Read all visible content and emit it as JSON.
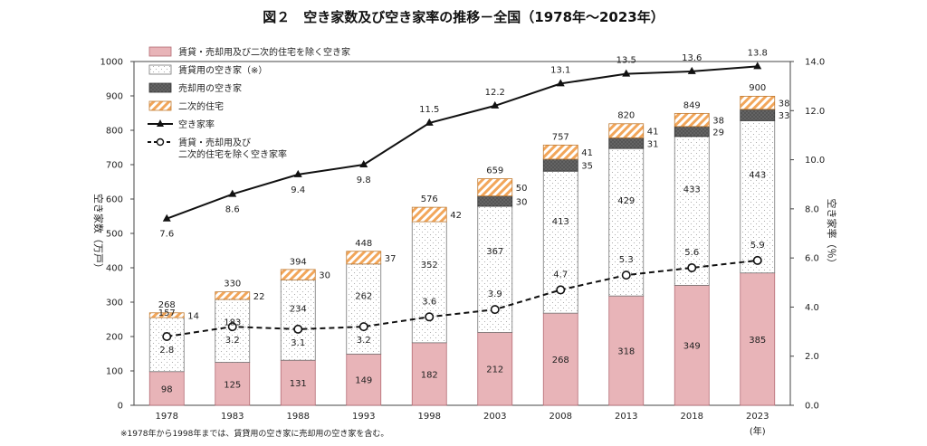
{
  "chart_data": {
    "type": "bar",
    "title": "図２　空き家数及び空き家率の推移－全国（1978年～2023年）",
    "categories": [
      "1978",
      "1983",
      "1988",
      "1993",
      "1998",
      "2003",
      "2008",
      "2013",
      "2018",
      "2023"
    ],
    "x_unit": "(年)",
    "y_left": {
      "label": "空き家数（万戸）",
      "ylim": [
        0,
        1000
      ],
      "ticks": [
        0,
        100,
        200,
        300,
        400,
        500,
        600,
        700,
        800,
        900,
        1000
      ]
    },
    "y_right": {
      "label": "空き家率（％）",
      "ylim": [
        0,
        14
      ],
      "ticks": [
        "0.0",
        "2.0",
        "4.0",
        "6.0",
        "8.0",
        "10.0",
        "12.0",
        "14.0"
      ]
    },
    "stacked_series": [
      {
        "name": "賃貸・売却用及び二次的住宅を除く空き家",
        "color": "#e8b4b8",
        "values": [
          98,
          125,
          131,
          149,
          182,
          212,
          268,
          318,
          349,
          385
        ]
      },
      {
        "name": "賃貸用の空き家（※）",
        "color": "#ffffff",
        "values": [
          157,
          183,
          234,
          262,
          352,
          367,
          413,
          429,
          433,
          443
        ]
      },
      {
        "name": "売却用の空き家",
        "color": "#555555",
        "values": [
          null,
          null,
          null,
          null,
          null,
          30,
          35,
          31,
          29,
          33
        ]
      },
      {
        "name": "二次的住宅",
        "color": "#f2a65a",
        "values": [
          14,
          22,
          30,
          37,
          42,
          50,
          41,
          41,
          38,
          38
        ]
      }
    ],
    "totals": [
      268,
      330,
      394,
      448,
      576,
      659,
      757,
      820,
      849,
      900
    ],
    "line_series": [
      {
        "name": "空き家率",
        "style": "solid-triangle",
        "values": [
          7.6,
          8.6,
          9.4,
          9.8,
          11.5,
          12.2,
          13.1,
          13.5,
          13.6,
          13.8
        ],
        "labels": [
          "7.6",
          "8.6",
          "9.4",
          "9.8",
          "11.5",
          "12.2",
          "13.1",
          "13.5",
          "13.6",
          "13.8"
        ]
      },
      {
        "name": "賃貸・売却用及び二次的住宅を除く空き家率",
        "legend_lines": [
          "賃貸・売却用及び",
          "二次的住宅を除く空き家率"
        ],
        "style": "dashed-circle",
        "values": [
          2.8,
          3.2,
          3.1,
          3.2,
          3.6,
          3.9,
          4.7,
          5.3,
          5.6,
          5.9
        ],
        "labels": [
          "2.8",
          "3.2",
          "3.1",
          "3.2",
          "3.6",
          "3.9",
          "4.7",
          "5.3",
          "5.6",
          "5.9"
        ]
      }
    ],
    "legend_placement": "top-left",
    "note": "※1978年から1998年までは、賃貸用の空き家に売却用の空き家を含む。"
  }
}
